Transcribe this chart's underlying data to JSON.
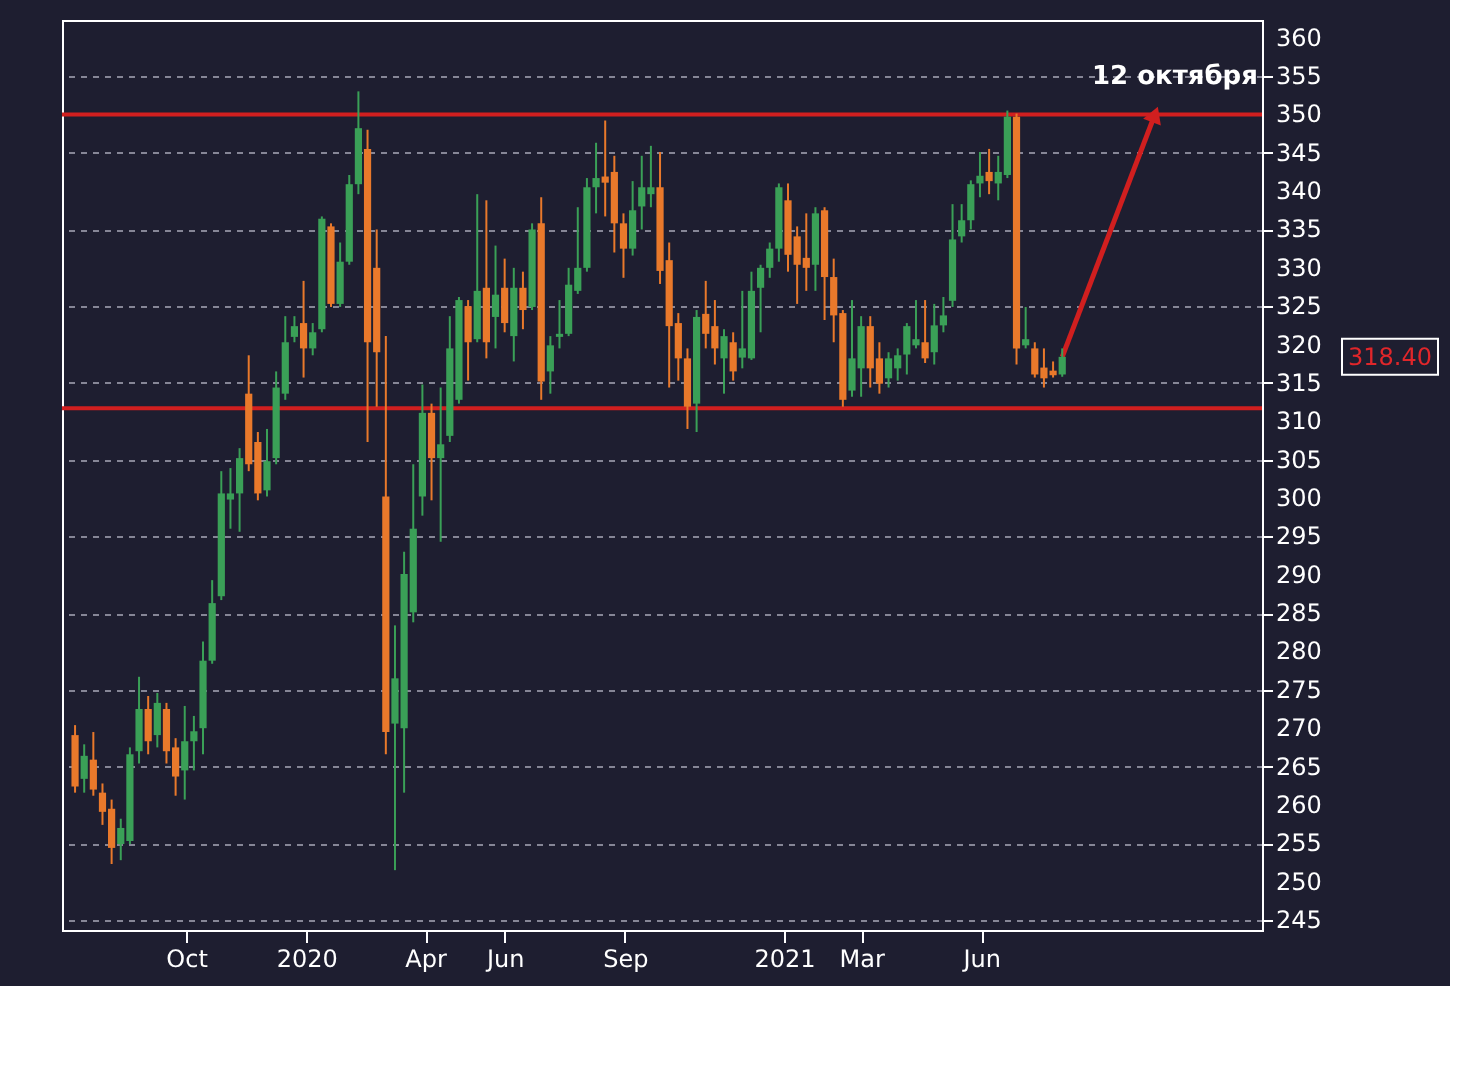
{
  "chart_data": {
    "type": "candlestick",
    "x": [
      "2019-07-08",
      "2019-07-15",
      "2019-07-22",
      "2019-07-29",
      "2019-08-05",
      "2019-08-12",
      "2019-08-19",
      "2019-08-26",
      "2019-09-02",
      "2019-09-09",
      "2019-09-16",
      "2019-09-23",
      "2019-09-30",
      "2019-10-07",
      "2019-10-14",
      "2019-10-21",
      "2019-10-28",
      "2019-11-04",
      "2019-11-11",
      "2019-11-18",
      "2019-11-25",
      "2019-12-02",
      "2019-12-09",
      "2019-12-16",
      "2019-12-23",
      "2019-12-30",
      "2020-01-06",
      "2020-01-13",
      "2020-01-20",
      "2020-01-27",
      "2020-02-03",
      "2020-02-10",
      "2020-02-17",
      "2020-02-24",
      "2020-03-02",
      "2020-03-09",
      "2020-03-16",
      "2020-03-23",
      "2020-03-30",
      "2020-04-06",
      "2020-04-13",
      "2020-04-20",
      "2020-04-27",
      "2020-05-04",
      "2020-05-11",
      "2020-05-18",
      "2020-05-25",
      "2020-06-01",
      "2020-06-08",
      "2020-06-15",
      "2020-06-22",
      "2020-06-29",
      "2020-07-06",
      "2020-07-13",
      "2020-07-20",
      "2020-07-27",
      "2020-08-03",
      "2020-08-10",
      "2020-08-17",
      "2020-08-24",
      "2020-08-31",
      "2020-09-07",
      "2020-09-14",
      "2020-09-21",
      "2020-09-28",
      "2020-10-05",
      "2020-10-12",
      "2020-10-19",
      "2020-10-26",
      "2020-11-02",
      "2020-11-09",
      "2020-11-16",
      "2020-11-23",
      "2020-11-30",
      "2020-12-07",
      "2020-12-14",
      "2020-12-21",
      "2020-12-28",
      "2021-01-04",
      "2021-01-11",
      "2021-01-18",
      "2021-01-25",
      "2021-02-01",
      "2021-02-08",
      "2021-02-15",
      "2021-02-22",
      "2021-03-01",
      "2021-03-08",
      "2021-03-15",
      "2021-03-22",
      "2021-03-29",
      "2021-04-05",
      "2021-04-12",
      "2021-04-19",
      "2021-04-26",
      "2021-05-03",
      "2021-05-10",
      "2021-05-17",
      "2021-05-24",
      "2021-05-31",
      "2021-06-07",
      "2021-06-14",
      "2021-06-21",
      "2021-06-28",
      "2021-07-05",
      "2021-07-12",
      "2021-07-19",
      "2021-07-26",
      "2021-08-02"
    ],
    "ohlc": [
      [
        269.1,
        270.4,
        261.6,
        262.4
      ],
      [
        263.4,
        267.9,
        261.6,
        266.4
      ],
      [
        265.9,
        269.5,
        261.2,
        262.0
      ],
      [
        261.6,
        262.8,
        257.4,
        259.1
      ],
      [
        259.5,
        260.7,
        252.3,
        254.4
      ],
      [
        254.9,
        258.2,
        252.8,
        257.0
      ],
      [
        255.3,
        267.5,
        254.9,
        266.6
      ],
      [
        267.0,
        276.7,
        265.4,
        272.5
      ],
      [
        272.5,
        274.2,
        266.6,
        268.3
      ],
      [
        269.1,
        274.6,
        267.5,
        273.3
      ],
      [
        272.5,
        273.3,
        265.4,
        267.0
      ],
      [
        267.5,
        268.7,
        261.2,
        263.7
      ],
      [
        264.5,
        272.9,
        260.7,
        268.3
      ],
      [
        268.3,
        271.6,
        264.5,
        269.6
      ],
      [
        270.0,
        281.3,
        266.6,
        278.8
      ],
      [
        278.8,
        289.3,
        278.4,
        286.3
      ],
      [
        287.2,
        303.5,
        286.7,
        300.6
      ],
      [
        299.8,
        303.9,
        296.0,
        300.6
      ],
      [
        300.6,
        306.5,
        295.6,
        305.2
      ],
      [
        313.6,
        318.6,
        303.5,
        304.4
      ],
      [
        307.3,
        308.6,
        299.7,
        300.6
      ],
      [
        301.0,
        309.0,
        300.2,
        304.8
      ],
      [
        305.2,
        316.5,
        304.4,
        314.4
      ],
      [
        313.6,
        323.7,
        312.8,
        320.3
      ],
      [
        321.0,
        323.7,
        320.3,
        322.4
      ],
      [
        322.8,
        328.3,
        315.7,
        319.5
      ],
      [
        319.5,
        322.8,
        318.6,
        321.6
      ],
      [
        322.0,
        336.7,
        321.6,
        336.4
      ],
      [
        335.4,
        335.8,
        324.9,
        325.3
      ],
      [
        325.3,
        333.3,
        324.9,
        330.8
      ],
      [
        330.8,
        342.1,
        330.4,
        340.9
      ],
      [
        340.9,
        353.0,
        339.6,
        348.2
      ],
      [
        345.5,
        348.0,
        307.3,
        320.3
      ],
      [
        330.0,
        335.0,
        311.9,
        319.0
      ],
      [
        300.2,
        321.1,
        266.6,
        269.5
      ],
      [
        270.6,
        283.4,
        251.5,
        276.5
      ],
      [
        270.0,
        293.0,
        261.6,
        290.1
      ],
      [
        285.1,
        304.4,
        283.8,
        296.0
      ],
      [
        300.2,
        314.8,
        297.7,
        311.1
      ],
      [
        311.1,
        312.3,
        299.7,
        305.2
      ],
      [
        305.2,
        314.4,
        294.3,
        307.0
      ],
      [
        308.1,
        323.7,
        307.3,
        319.5
      ],
      [
        312.8,
        326.2,
        312.3,
        325.8
      ],
      [
        325.0,
        325.8,
        315.3,
        320.3
      ],
      [
        320.7,
        339.6,
        320.3,
        327.0
      ],
      [
        327.4,
        338.8,
        318.2,
        320.3
      ],
      [
        323.6,
        332.9,
        319.5,
        326.5
      ],
      [
        327.4,
        331.2,
        321.6,
        322.8
      ],
      [
        321.1,
        330.0,
        317.8,
        327.4
      ],
      [
        327.4,
        329.5,
        322.0,
        324.5
      ],
      [
        324.9,
        335.8,
        324.5,
        335.0
      ],
      [
        335.8,
        339.2,
        312.8,
        315.2
      ],
      [
        316.5,
        321.1,
        313.6,
        319.9
      ],
      [
        321.0,
        325.8,
        319.5,
        321.4
      ],
      [
        321.4,
        330.0,
        321.1,
        327.8
      ],
      [
        327.0,
        337.9,
        326.6,
        330.0
      ],
      [
        330.0,
        341.7,
        329.5,
        340.5
      ],
      [
        340.5,
        346.3,
        337.1,
        341.7
      ],
      [
        341.9,
        349.2,
        336.7,
        341.1
      ],
      [
        342.5,
        344.6,
        332.0,
        335.8
      ],
      [
        335.8,
        337.1,
        328.7,
        332.5
      ],
      [
        332.5,
        341.3,
        331.6,
        337.5
      ],
      [
        338.0,
        344.6,
        335.0,
        340.5
      ],
      [
        339.6,
        345.9,
        337.9,
        340.5
      ],
      [
        340.5,
        345.1,
        327.9,
        329.6
      ],
      [
        331.0,
        333.3,
        314.4,
        322.4
      ],
      [
        322.8,
        324.1,
        315.3,
        318.2
      ],
      [
        318.2,
        319.5,
        309.0,
        311.9
      ],
      [
        312.3,
        324.5,
        308.6,
        323.6
      ],
      [
        324.0,
        328.3,
        319.5,
        321.4
      ],
      [
        322.4,
        325.8,
        317.4,
        319.5
      ],
      [
        318.2,
        322.0,
        313.6,
        321.1
      ],
      [
        320.3,
        321.6,
        315.3,
        316.5
      ],
      [
        318.3,
        327.0,
        316.9,
        319.5
      ],
      [
        318.2,
        329.5,
        318.0,
        327.0
      ],
      [
        327.4,
        330.4,
        321.6,
        330.0
      ],
      [
        330.0,
        333.3,
        328.7,
        332.5
      ],
      [
        332.5,
        341.0,
        330.8,
        340.5
      ],
      [
        338.8,
        341.0,
        329.5,
        331.7
      ],
      [
        334.1,
        335.4,
        325.3,
        330.4
      ],
      [
        331.3,
        337.1,
        327.0,
        330.0
      ],
      [
        330.4,
        337.9,
        327.0,
        337.1
      ],
      [
        337.5,
        337.9,
        323.2,
        328.8
      ],
      [
        328.8,
        331.2,
        320.3,
        323.8
      ],
      [
        324.1,
        324.5,
        311.9,
        312.8
      ],
      [
        314.0,
        325.8,
        313.2,
        318.2
      ],
      [
        316.9,
        323.7,
        313.2,
        322.4
      ],
      [
        322.4,
        323.7,
        314.4,
        316.9
      ],
      [
        318.2,
        320.3,
        313.6,
        314.9
      ],
      [
        315.6,
        319.0,
        314.4,
        318.2
      ],
      [
        316.9,
        319.5,
        315.3,
        318.6
      ],
      [
        318.7,
        322.8,
        316.1,
        322.4
      ],
      [
        319.9,
        325.8,
        319.5,
        320.7
      ],
      [
        320.3,
        325.8,
        317.6,
        318.2
      ],
      [
        319.0,
        325.3,
        317.4,
        322.5
      ],
      [
        322.5,
        326.2,
        321.6,
        323.8
      ],
      [
        325.7,
        338.3,
        324.9,
        333.7
      ],
      [
        334.1,
        338.3,
        333.3,
        336.2
      ],
      [
        336.2,
        341.4,
        335.0,
        340.9
      ],
      [
        341.0,
        345.1,
        339.2,
        342.0
      ],
      [
        342.5,
        345.5,
        339.6,
        341.3
      ],
      [
        341.0,
        344.6,
        338.8,
        342.5
      ],
      [
        342.1,
        350.5,
        341.7,
        349.7
      ],
      [
        349.7,
        350.1,
        317.4,
        319.5
      ],
      [
        319.9,
        324.9,
        319.5,
        320.7
      ],
      [
        319.5,
        320.3,
        315.7,
        316.1
      ],
      [
        317.0,
        319.5,
        314.4,
        315.6
      ],
      [
        316.6,
        317.8,
        315.7,
        316.0
      ],
      [
        316.1,
        319.5,
        315.8,
        318.4
      ]
    ],
    "colors": [
      "#e9792b",
      "#3aa057",
      "#e9792b",
      "#e9792b",
      "#e9792b",
      "#3aa057",
      "#3aa057",
      "#3aa057",
      "#e9792b",
      "#3aa057",
      "#e9792b",
      "#e9792b",
      "#3aa057",
      "#3aa057",
      "#3aa057",
      "#3aa057",
      "#3aa057",
      "#3aa057",
      "#3aa057",
      "#e9792b",
      "#e9792b",
      "#3aa057",
      "#3aa057",
      "#3aa057",
      "#3aa057",
      "#e9792b",
      "#3aa057",
      "#3aa057",
      "#e9792b",
      "#3aa057",
      "#3aa057",
      "#3aa057",
      "#e9792b",
      "#e9792b",
      "#e9792b",
      "#3aa057",
      "#3aa057",
      "#3aa057",
      "#3aa057",
      "#e9792b",
      "#3aa057",
      "#3aa057",
      "#3aa057",
      "#e9792b",
      "#3aa057",
      "#e9792b",
      "#3aa057",
      "#e9792b",
      "#3aa057",
      "#e9792b",
      "#3aa057",
      "#e9792b",
      "#3aa057",
      "#3aa057",
      "#3aa057",
      "#3aa057",
      "#3aa057",
      "#3aa057",
      "#e9792b",
      "#e9792b",
      "#e9792b",
      "#3aa057",
      "#3aa057",
      "#3aa057",
      "#e9792b",
      "#e9792b",
      "#e9792b",
      "#e9792b",
      "#3aa057",
      "#e9792b",
      "#e9792b",
      "#3aa057",
      "#e9792b",
      "#3aa057",
      "#3aa057",
      "#3aa057",
      "#3aa057",
      "#3aa057",
      "#e9792b",
      "#e9792b",
      "#e9792b",
      "#3aa057",
      "#e9792b",
      "#e9792b",
      "#e9792b",
      "#3aa057",
      "#3aa057",
      "#e9792b",
      "#e9792b",
      "#3aa057",
      "#3aa057",
      "#3aa057",
      "#3aa057",
      "#e9792b",
      "#3aa057",
      "#3aa057",
      "#3aa057",
      "#3aa057",
      "#3aa057",
      "#3aa057",
      "#e9792b",
      "#3aa057",
      "#3aa057",
      "#e9792b",
      "#3aa057",
      "#e9792b",
      "#e9792b",
      "#e9792b",
      "#3aa057"
    ],
    "xlim": [
      "2019-06-28",
      "2022-01-02"
    ],
    "xticks": [
      {
        "value": "2019-10-01",
        "label": "Oct"
      },
      {
        "value": "2020-01-01",
        "label": "2020"
      },
      {
        "value": "2020-04-01",
        "label": "Apr"
      },
      {
        "value": "2020-06-01",
        "label": "Jun"
      },
      {
        "value": "2020-09-01",
        "label": "Sep"
      },
      {
        "value": "2021-01-01",
        "label": "2021"
      },
      {
        "value": "2021-03-01",
        "label": "Mar"
      },
      {
        "value": "2021-06-01",
        "label": "Jun"
      }
    ],
    "ylim": [
      243.7,
      362.3
    ],
    "yticks": [
      245,
      250,
      255,
      260,
      265,
      270,
      275,
      280,
      285,
      290,
      295,
      300,
      305,
      310,
      315,
      320,
      325,
      330,
      335,
      340,
      345,
      350,
      355,
      360
    ],
    "grid": "y",
    "ref_lines": [
      {
        "axis": "y",
        "value": 350,
        "label": null,
        "color": "#d11f1f"
      },
      {
        "axis": "y",
        "value": 311.7,
        "label": null,
        "color": "#d11f1f"
      }
    ],
    "annotations": [
      {
        "text": "12 октября",
        "x": "2021-10-12",
        "y": 350
      },
      "318.40"
    ]
  }
}
